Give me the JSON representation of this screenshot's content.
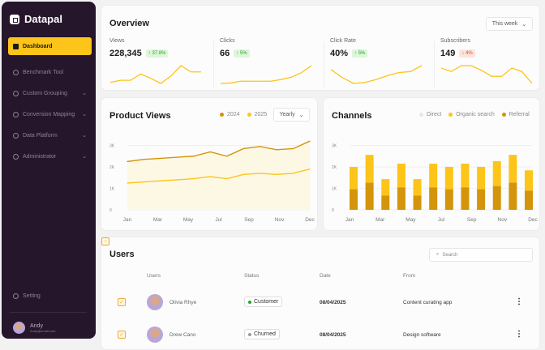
{
  "sidebar": {
    "brand": "Datapal",
    "items": [
      {
        "label": "Dashboard",
        "icon": "home-icon",
        "active": true
      },
      {
        "label": "Benchmark Tool",
        "icon": "gauge-icon"
      },
      {
        "label": "Custom Grouping",
        "icon": "grouping-icon",
        "chevron": true
      },
      {
        "label": "Conversion Mapping",
        "icon": "mapping-icon",
        "chevron": true
      },
      {
        "label": "Data Platform",
        "icon": "chart-icon",
        "chevron": true
      },
      {
        "label": "Administrator",
        "icon": "shield-icon",
        "chevron": true
      }
    ],
    "setting": "Setting",
    "user": {
      "name": "Andy",
      "email": "Andy@email.com"
    }
  },
  "overview": {
    "title": "Overview",
    "period": "This week",
    "stats": [
      {
        "label": "Views",
        "value": "228,345",
        "change": "37.8%",
        "dir": "up",
        "spark": [
          2,
          2.2,
          2.2,
          2.8,
          2.4,
          1.9,
          2.6,
          3.6,
          3,
          3
        ]
      },
      {
        "label": "Clicks",
        "value": "66",
        "change": "5%",
        "dir": "up",
        "spark": [
          1,
          1.1,
          1.5,
          1.5,
          1.5,
          1.5,
          1.9,
          2.4,
          3.4,
          5
        ]
      },
      {
        "label": "Click Rate",
        "value": "40%",
        "change": "5%",
        "dir": "up",
        "spark": [
          4,
          3.2,
          2.6,
          2.7,
          3,
          3.4,
          3.7,
          3.8,
          4.4
        ]
      },
      {
        "label": "Subscribers",
        "value": "149",
        "change": "4%",
        "dir": "down",
        "spark": [
          3.5,
          3.2,
          3.7,
          3.7,
          3.3,
          2.8,
          2.8,
          3.5,
          3.2,
          2.2
        ]
      }
    ]
  },
  "product_views": {
    "title": "Product Views",
    "period": "Yearly"
  },
  "channels": {
    "title": "Channels"
  },
  "chart_data": [
    {
      "type": "area",
      "title": "Product Views",
      "categories": [
        "Jan",
        "Feb",
        "Mar",
        "Apr",
        "May",
        "Jun",
        "Jul",
        "Aug",
        "Sep",
        "Oct",
        "Nov",
        "Dec"
      ],
      "x_tick_labels": [
        "Jan",
        "Mar",
        "May",
        "Jul",
        "Sep",
        "Nov",
        "Dec"
      ],
      "y_tick_labels": [
        "0",
        "1K",
        "2K",
        "3K"
      ],
      "ylim": [
        0,
        3000
      ],
      "grid": true,
      "legend": "top-right",
      "series": [
        {
          "name": "2024",
          "color": "#d4940b",
          "values": [
            2250,
            2350,
            2400,
            2450,
            2500,
            2700,
            2500,
            2850,
            2950,
            2800,
            2850,
            3200
          ]
        },
        {
          "name": "2025",
          "color": "#fdc419",
          "values": [
            1250,
            1300,
            1350,
            1400,
            1450,
            1550,
            1450,
            1650,
            1700,
            1650,
            1700,
            1900
          ]
        }
      ]
    },
    {
      "type": "stacked-bar",
      "title": "Channels",
      "categories": [
        "Jan",
        "Feb",
        "Mar",
        "Apr",
        "May",
        "Jun",
        "Jul",
        "Aug",
        "Sep",
        "Oct",
        "Nov",
        "Dec"
      ],
      "x_tick_labels": [
        "Jan",
        "Mar",
        "May",
        "Jul",
        "Sep",
        "Nov",
        "Dec"
      ],
      "y_tick_labels": [
        "0",
        "1K",
        "2K",
        "3K"
      ],
      "ylim": [
        0,
        3000
      ],
      "grid": true,
      "legend": "top-right",
      "series": [
        {
          "name": "Direct",
          "color": "#e8e8ec",
          "values": [
            0,
            0,
            0,
            0,
            0,
            0,
            0,
            0,
            0,
            0,
            0,
            0
          ]
        },
        {
          "name": "Referral",
          "color": "#d4940b",
          "values": [
            960,
            1270,
            670,
            1050,
            670,
            1050,
            960,
            1050,
            960,
            1110,
            1270,
            900
          ]
        },
        {
          "name": "Organic search",
          "color": "#fdc419",
          "values": [
            1040,
            1290,
            760,
            1100,
            760,
            1100,
            1040,
            1100,
            1040,
            1160,
            1290,
            940
          ]
        }
      ]
    }
  ],
  "users": {
    "title": "Users",
    "search_placeholder": "Search",
    "columns": [
      "Users",
      "Status",
      "Date",
      "From"
    ],
    "rows": [
      {
        "name": "Olivia Rhye",
        "status": "Customer",
        "date": "08/04/2025",
        "from": "Content curating app"
      },
      {
        "name": "Drew Cano",
        "status": "Churned",
        "date": "08/04/2025",
        "from": "Design software"
      }
    ]
  }
}
